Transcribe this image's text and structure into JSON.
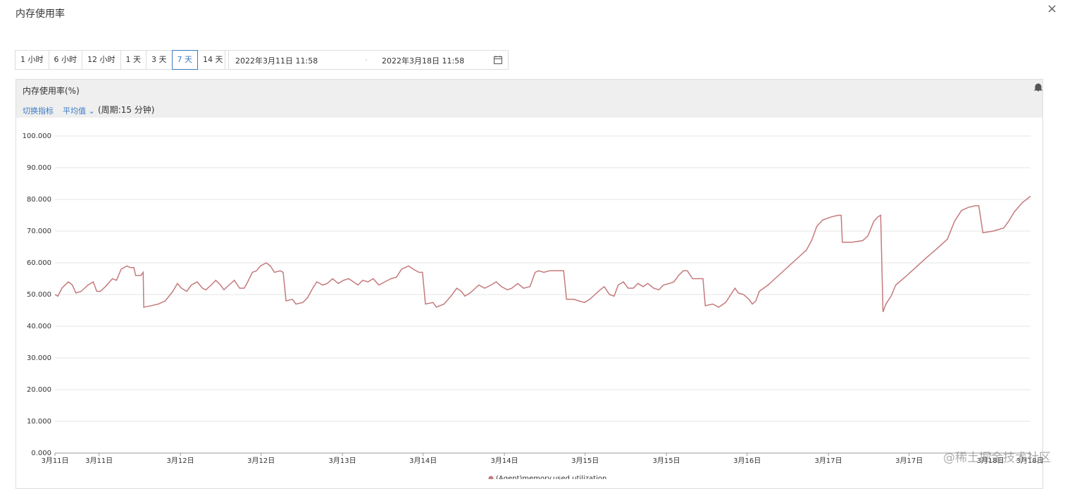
{
  "header": {
    "title": "内存使用率"
  },
  "toolbar": {
    "ranges": [
      "1 小时",
      "6 小时",
      "12 小时",
      "1 天",
      "3 天",
      "7 天",
      "14 天"
    ],
    "selected": 5
  },
  "date_range": {
    "start": "2022年3月11日 11:58",
    "separator": "-",
    "end": "2022年3月18日 11:58"
  },
  "panel": {
    "title": "内存使用率(%)",
    "switch": "切换指标",
    "aggregation": "平均值",
    "period": "(周期:15 分钟)"
  },
  "chart_data": {
    "type": "line",
    "x": [
      0,
      0.5,
      1.2,
      2.3,
      3.0,
      3.6,
      4.5,
      5.7,
      6.6,
      7.2,
      7.8,
      8.7,
      9.9,
      10.6,
      11.4,
      12.4,
      13.0,
      13.6,
      13.9,
      14.8,
      15.2,
      15.3,
      16.6,
      17.8,
      19.0,
      20.3,
      21.1,
      21.8,
      22.7,
      23.5,
      24.5,
      25.4,
      26.0,
      26.9,
      27.7,
      28.5,
      29.1,
      30.0,
      30.9,
      31.8,
      32.6,
      33.2,
      34.0,
      34.7,
      35.4,
      36.4,
      37.1,
      37.8,
      38.8,
      39.3,
      39.8,
      40.9,
      41.5,
      42.7,
      43.5,
      44.4,
      45.1,
      46.1,
      46.9,
      47.8,
      48.8,
      49.7,
      50.6,
      51.4,
      52.2,
      53.0,
      53.9,
      54.8,
      55.8,
      56.8,
      57.9,
      58.8,
      59.7,
      60.9,
      61.7,
      62.7,
      63.3,
      63.8,
      65.1,
      65.7,
      67.0,
      68.2,
      69.2,
      70.0,
      70.6,
      71.5,
      72.4,
      73.0,
      74.0,
      75.1,
      76.0,
      76.9,
      77.9,
      78.7,
      79.7,
      80.7,
      81.8,
      82.7,
      83.3,
      84.2,
      85.2,
      86.6,
      87.6,
      88.1,
      89.4,
      90.2,
      91.2,
      92.1,
      93.0,
      93.9,
      94.6,
      95.5,
      96.3,
      97.0,
      97.9,
      98.7,
      99.6,
      100.4,
      101.3,
      102.1,
      103.1,
      104.0,
      104.8,
      105.8,
      106.6,
      107.4,
      108.2,
      108.9,
      109.8,
      110.6,
      111.6,
      112.0,
      113.3,
      114.3,
      115.5,
      116.4,
      117.1,
      117.7,
      118.6,
      119.5,
      120.1,
      120.7,
      121.3,
      122.8,
      124.0,
      125.8,
      127.6,
      129.4,
      130.3,
      131.2,
      132.2,
      133.7,
      134.9,
      135.4,
      135.6,
      137.3,
      139.1,
      140.0,
      141.0,
      141.7,
      142.2,
      142.6,
      143.1,
      144.0,
      144.8,
      146.4,
      148.2,
      150.0,
      151.9,
      153.7,
      154.9,
      156.1,
      157.3,
      158.5,
      159.1,
      159.8,
      161.6,
      163.4,
      164.2,
      165.2,
      166.6,
      168.0
    ],
    "series": [
      {
        "name": "(Agent)memory.used.utilization",
        "color": "#c47a7c",
        "values": [
          50,
          49.5,
          52,
          54,
          53,
          50.5,
          51,
          53,
          54,
          51,
          51,
          52.5,
          55,
          54.5,
          58,
          59,
          58.5,
          58.5,
          56,
          56,
          57,
          46,
          46.5,
          47,
          48,
          51,
          53.5,
          52,
          51,
          53,
          54,
          52,
          51.5,
          53,
          54.5,
          53,
          51.5,
          53,
          54.5,
          52,
          52,
          54,
          57,
          57.5,
          59,
          60,
          59,
          57,
          57.5,
          57,
          48,
          48.5,
          47,
          47.5,
          49,
          52,
          54,
          53,
          53.5,
          55,
          53.5,
          54.5,
          55,
          54,
          53,
          54.5,
          54,
          55,
          53,
          54,
          55,
          55.5,
          58,
          59,
          58,
          57,
          57,
          47,
          47.5,
          46,
          47,
          49.5,
          52,
          51,
          49.5,
          50.5,
          52,
          53,
          52,
          53,
          54,
          52.5,
          51.5,
          52,
          53.5,
          52,
          52.5,
          57,
          57.5,
          57,
          57.5,
          57.5,
          57.5,
          48.5,
          48.5,
          48,
          47.5,
          48.5,
          50,
          51.5,
          52.5,
          50,
          49.5,
          53,
          54,
          52,
          52,
          53.5,
          52.5,
          53.5,
          52,
          51.5,
          53,
          53.5,
          54,
          56,
          57.5,
          57.5,
          55,
          55,
          55,
          46.5,
          47,
          46,
          47.5,
          50,
          52,
          50.5,
          50,
          48.5,
          47,
          48,
          51,
          53,
          55,
          58,
          61,
          64,
          67,
          71.5,
          73.5,
          74.5,
          75,
          75,
          66.5,
          66.5,
          67,
          68.5,
          73,
          74.5,
          75,
          44.5,
          47,
          49.5,
          53,
          55.5,
          58.5,
          61.5,
          64.5,
          67.5,
          73,
          76.5,
          77.5,
          78,
          78,
          69.5,
          70,
          71,
          73,
          76,
          79,
          81
        ]
      }
    ],
    "xlim": [
      0,
      168
    ],
    "xticks": [
      {
        "value": 0,
        "label": "3月11日"
      },
      {
        "value": 7.6,
        "label": "3月11日"
      },
      {
        "value": 21.6,
        "label": "3月12日"
      },
      {
        "value": 35.5,
        "label": "3月12日"
      },
      {
        "value": 49.5,
        "label": "3月13日"
      },
      {
        "value": 63.4,
        "label": "3月14日"
      },
      {
        "value": 77.4,
        "label": "3月14日"
      },
      {
        "value": 91.3,
        "label": "3月15日"
      },
      {
        "value": 105.3,
        "label": "3月15日"
      },
      {
        "value": 119.2,
        "label": "3月16日"
      },
      {
        "value": 133.2,
        "label": "3月17日"
      },
      {
        "value": 147.1,
        "label": "3月17日"
      },
      {
        "value": 161.1,
        "label": "3月18日"
      },
      {
        "value": 167.9,
        "label": "3月18日"
      }
    ],
    "ylim": [
      0,
      100
    ],
    "yticks": [
      {
        "value": 0,
        "label": "0.000"
      },
      {
        "value": 10,
        "label": "10.000"
      },
      {
        "value": 20,
        "label": "20.000"
      },
      {
        "value": 30,
        "label": "30.000"
      },
      {
        "value": 40,
        "label": "40.000"
      },
      {
        "value": 50,
        "label": "50.000"
      },
      {
        "value": 60,
        "label": "60.000"
      },
      {
        "value": 70,
        "label": "70.000"
      },
      {
        "value": 80,
        "label": "80.000"
      },
      {
        "value": 90,
        "label": "90.000"
      },
      {
        "value": 100,
        "label": "100.000"
      }
    ],
    "grid": true
  },
  "watermark": "@稀土掘金技术社区"
}
